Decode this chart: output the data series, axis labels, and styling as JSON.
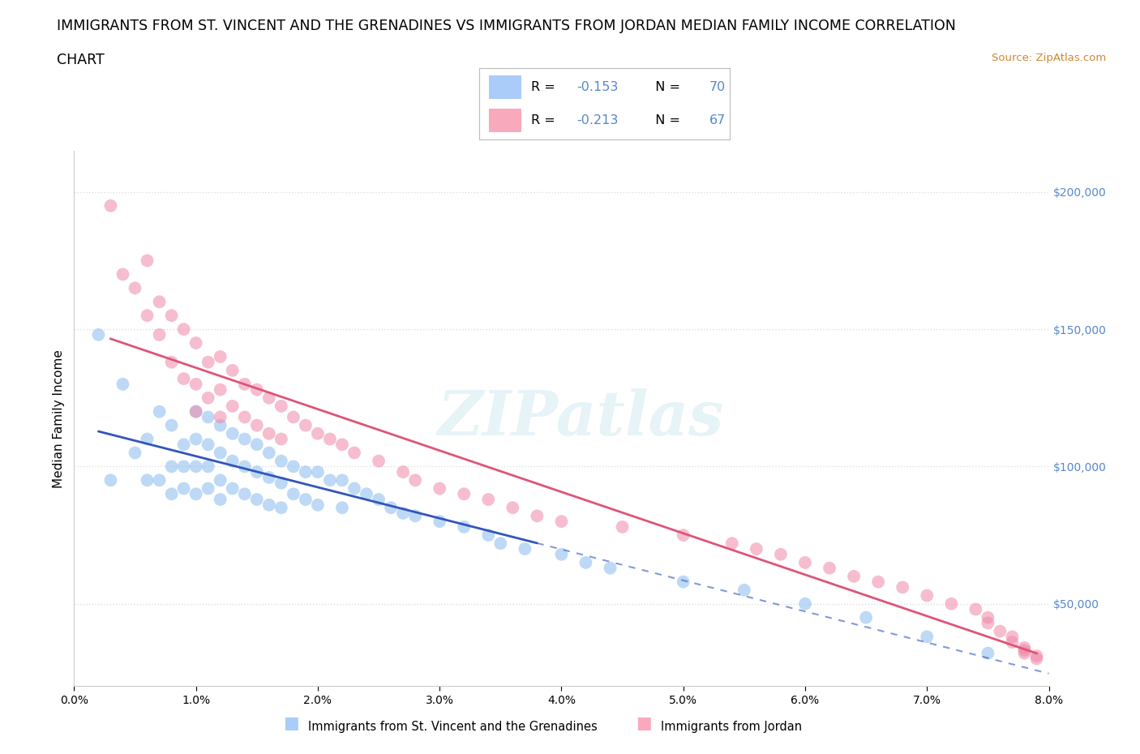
{
  "title_line1": "IMMIGRANTS FROM ST. VINCENT AND THE GRENADINES VS IMMIGRANTS FROM JORDAN MEDIAN FAMILY INCOME CORRELATION",
  "title_line2": "CHART",
  "source": "Source: ZipAtlas.com",
  "ylabel": "Median Family Income",
  "legend_1_color": "#aaccf8",
  "legend_2_color": "#f8aabc",
  "scatter_1_color": "#88bbf0",
  "scatter_2_color": "#f088a8",
  "line_1_color": "#3355bb",
  "line_2_color": "#dd5577",
  "watermark": "ZIPatlas",
  "xlim": [
    0.0,
    0.08
  ],
  "ylim": [
    20000,
    215000
  ],
  "yticks": [
    50000,
    100000,
    150000,
    200000
  ],
  "ytick_labels": [
    "$50,000",
    "$100,000",
    "$150,000",
    "$200,000"
  ],
  "xticks": [
    0.0,
    0.01,
    0.02,
    0.03,
    0.04,
    0.05,
    0.06,
    0.07,
    0.08
  ],
  "xtick_labels": [
    "0.0%",
    "1.0%",
    "2.0%",
    "3.0%",
    "4.0%",
    "5.0%",
    "6.0%",
    "7.0%",
    "8.0%"
  ],
  "footer_label_1": "Immigrants from St. Vincent and the Grenadines",
  "footer_label_2": "Immigrants from Jordan",
  "sv_x": [
    0.002,
    0.003,
    0.004,
    0.005,
    0.006,
    0.006,
    0.007,
    0.007,
    0.008,
    0.008,
    0.008,
    0.009,
    0.009,
    0.009,
    0.01,
    0.01,
    0.01,
    0.01,
    0.011,
    0.011,
    0.011,
    0.011,
    0.012,
    0.012,
    0.012,
    0.012,
    0.013,
    0.013,
    0.013,
    0.014,
    0.014,
    0.014,
    0.015,
    0.015,
    0.015,
    0.016,
    0.016,
    0.016,
    0.017,
    0.017,
    0.017,
    0.018,
    0.018,
    0.019,
    0.019,
    0.02,
    0.02,
    0.021,
    0.022,
    0.022,
    0.023,
    0.024,
    0.025,
    0.026,
    0.027,
    0.028,
    0.03,
    0.032,
    0.034,
    0.035,
    0.037,
    0.04,
    0.042,
    0.044,
    0.05,
    0.055,
    0.06,
    0.065,
    0.07,
    0.075
  ],
  "sv_y": [
    148000,
    95000,
    130000,
    105000,
    110000,
    95000,
    120000,
    95000,
    115000,
    100000,
    90000,
    108000,
    100000,
    92000,
    120000,
    110000,
    100000,
    90000,
    118000,
    108000,
    100000,
    92000,
    115000,
    105000,
    95000,
    88000,
    112000,
    102000,
    92000,
    110000,
    100000,
    90000,
    108000,
    98000,
    88000,
    105000,
    96000,
    86000,
    102000,
    94000,
    85000,
    100000,
    90000,
    98000,
    88000,
    98000,
    86000,
    95000,
    95000,
    85000,
    92000,
    90000,
    88000,
    85000,
    83000,
    82000,
    80000,
    78000,
    75000,
    72000,
    70000,
    68000,
    65000,
    63000,
    58000,
    55000,
    50000,
    45000,
    38000,
    32000
  ],
  "jd_x": [
    0.003,
    0.004,
    0.005,
    0.006,
    0.006,
    0.007,
    0.007,
    0.008,
    0.008,
    0.009,
    0.009,
    0.01,
    0.01,
    0.01,
    0.011,
    0.011,
    0.012,
    0.012,
    0.012,
    0.013,
    0.013,
    0.014,
    0.014,
    0.015,
    0.015,
    0.016,
    0.016,
    0.017,
    0.017,
    0.018,
    0.019,
    0.02,
    0.021,
    0.022,
    0.023,
    0.025,
    0.027,
    0.028,
    0.03,
    0.032,
    0.034,
    0.036,
    0.038,
    0.04,
    0.045,
    0.05,
    0.054,
    0.056,
    0.058,
    0.06,
    0.062,
    0.064,
    0.066,
    0.068,
    0.07,
    0.072,
    0.074,
    0.075,
    0.075,
    0.076,
    0.077,
    0.077,
    0.078,
    0.078,
    0.078,
    0.079,
    0.079
  ],
  "jd_y": [
    195000,
    170000,
    165000,
    155000,
    175000,
    160000,
    148000,
    155000,
    138000,
    150000,
    132000,
    145000,
    130000,
    120000,
    138000,
    125000,
    140000,
    128000,
    118000,
    135000,
    122000,
    130000,
    118000,
    128000,
    115000,
    125000,
    112000,
    122000,
    110000,
    118000,
    115000,
    112000,
    110000,
    108000,
    105000,
    102000,
    98000,
    95000,
    92000,
    90000,
    88000,
    85000,
    82000,
    80000,
    78000,
    75000,
    72000,
    70000,
    68000,
    65000,
    63000,
    60000,
    58000,
    56000,
    53000,
    50000,
    48000,
    45000,
    43000,
    40000,
    38000,
    36000,
    34000,
    33000,
    32000,
    31000,
    30000
  ],
  "grid_color": "#dddddd",
  "background_color": "#ffffff",
  "title_fontsize": 12.5,
  "axis_label_fontsize": 11,
  "tick_fontsize": 10,
  "tick_color": "#5588cc"
}
